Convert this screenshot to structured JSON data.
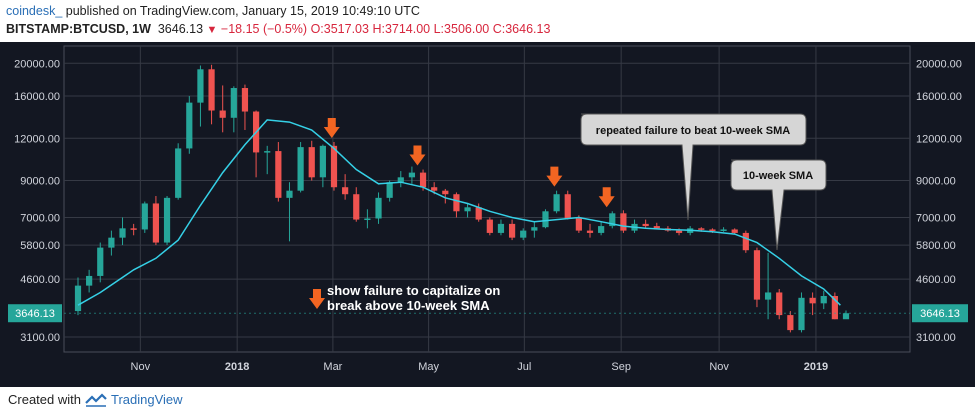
{
  "header": {
    "user": "coindesk_",
    "published": "published on TradingView.com, January 15, 2019 10:49:10 UTC",
    "symbol": "BITSTAMP:BTCUSD, 1W",
    "last": "3646.13",
    "change": "−18.15 (−0.5%)",
    "o_label": "O:",
    "o_value": "3517.03",
    "h_label": "H:",
    "h_value": "3714.00",
    "l_label": "L:",
    "l_value": "3506.00",
    "c_label": "C:",
    "c_value": "3646.13"
  },
  "footer": {
    "created_with": "Created with",
    "brand": "TradingView"
  },
  "colors": {
    "up": "#26a69a",
    "down": "#ef5350",
    "sma": "#35d0e6",
    "bg": "#131722",
    "grid": "#363a45",
    "arrow": "#f26522",
    "text": "#d1d4dc"
  },
  "chart_data": {
    "type": "candlestick",
    "yscale": "log",
    "ylim": [
      2800,
      22500
    ],
    "yticks": [
      20000,
      16000,
      12000,
      9000,
      7000,
      5800,
      4600,
      3100
    ],
    "ytick_labels": [
      "20000.00",
      "16000.00",
      "12000.00",
      "9000.00",
      "7000.00",
      "5800.00",
      "4600.00",
      "3100.00"
    ],
    "xticks": [
      "Nov",
      "2018",
      "Mar",
      "May",
      "Jul",
      "Sep",
      "Nov",
      "2019"
    ],
    "xtick_week": [
      5.6,
      14.3,
      22.9,
      31.5,
      40.1,
      48.8,
      57.6,
      66.3
    ],
    "last_price_label": "3646.13",
    "candles": [
      {
        "o": 3700,
        "h": 4650,
        "l": 3600,
        "c": 4400
      },
      {
        "o": 4400,
        "h": 4900,
        "l": 4200,
        "c": 4700
      },
      {
        "o": 4700,
        "h": 5900,
        "l": 4500,
        "c": 5700
      },
      {
        "o": 5700,
        "h": 6400,
        "l": 5400,
        "c": 6100
      },
      {
        "o": 6100,
        "h": 7000,
        "l": 5800,
        "c": 6500
      },
      {
        "o": 6500,
        "h": 6700,
        "l": 6200,
        "c": 6450
      },
      {
        "o": 6450,
        "h": 7800,
        "l": 6300,
        "c": 7700
      },
      {
        "o": 7700,
        "h": 8100,
        "l": 5800,
        "c": 5900
      },
      {
        "o": 5900,
        "h": 8100,
        "l": 5800,
        "c": 8000
      },
      {
        "o": 8000,
        "h": 11600,
        "l": 7900,
        "c": 11200
      },
      {
        "o": 11200,
        "h": 16000,
        "l": 10800,
        "c": 15300
      },
      {
        "o": 15300,
        "h": 19700,
        "l": 13000,
        "c": 19200
      },
      {
        "o": 19200,
        "h": 19800,
        "l": 13200,
        "c": 14500
      },
      {
        "o": 14500,
        "h": 17200,
        "l": 12500,
        "c": 13800
      },
      {
        "o": 13800,
        "h": 17100,
        "l": 12500,
        "c": 16900
      },
      {
        "o": 16900,
        "h": 17300,
        "l": 12700,
        "c": 14400
      },
      {
        "o": 14400,
        "h": 14500,
        "l": 9200,
        "c": 10900
      },
      {
        "o": 10900,
        "h": 11400,
        "l": 9400,
        "c": 11000
      },
      {
        "o": 11000,
        "h": 11700,
        "l": 7800,
        "c": 8000
      },
      {
        "o": 8000,
        "h": 8900,
        "l": 5950,
        "c": 8400
      },
      {
        "o": 8400,
        "h": 11700,
        "l": 8300,
        "c": 11300
      },
      {
        "o": 11300,
        "h": 11800,
        "l": 9000,
        "c": 9200
      },
      {
        "o": 9200,
        "h": 11500,
        "l": 8600,
        "c": 11400
      },
      {
        "o": 11400,
        "h": 11700,
        "l": 8400,
        "c": 8600
      },
      {
        "o": 8600,
        "h": 9400,
        "l": 7900,
        "c": 8200
      },
      {
        "o": 8200,
        "h": 8600,
        "l": 6800,
        "c": 6900
      },
      {
        "o": 6900,
        "h": 7400,
        "l": 6500,
        "c": 6950
      },
      {
        "o": 6950,
        "h": 8300,
        "l": 6700,
        "c": 8000
      },
      {
        "o": 8000,
        "h": 9000,
        "l": 7800,
        "c": 8900
      },
      {
        "o": 8900,
        "h": 9600,
        "l": 8600,
        "c": 9200
      },
      {
        "o": 9200,
        "h": 9900,
        "l": 8800,
        "c": 9500
      },
      {
        "o": 9500,
        "h": 9700,
        "l": 8400,
        "c": 8600
      },
      {
        "o": 8600,
        "h": 8900,
        "l": 8200,
        "c": 8400
      },
      {
        "o": 8400,
        "h": 8500,
        "l": 7700,
        "c": 8200
      },
      {
        "o": 8200,
        "h": 8300,
        "l": 7000,
        "c": 7300
      },
      {
        "o": 7300,
        "h": 7700,
        "l": 7000,
        "c": 7500
      },
      {
        "o": 7500,
        "h": 7700,
        "l": 6800,
        "c": 6900
      },
      {
        "o": 6900,
        "h": 7000,
        "l": 6200,
        "c": 6300
      },
      {
        "o": 6300,
        "h": 6900,
        "l": 6200,
        "c": 6700
      },
      {
        "o": 6700,
        "h": 6900,
        "l": 6000,
        "c": 6100
      },
      {
        "o": 6100,
        "h": 6500,
        "l": 6000,
        "c": 6400
      },
      {
        "o": 6400,
        "h": 6800,
        "l": 6100,
        "c": 6550
      },
      {
        "o": 6550,
        "h": 7400,
        "l": 6500,
        "c": 7300
      },
      {
        "o": 7300,
        "h": 8400,
        "l": 7200,
        "c": 8200
      },
      {
        "o": 8200,
        "h": 8400,
        "l": 6900,
        "c": 6950
      },
      {
        "o": 6950,
        "h": 7100,
        "l": 6300,
        "c": 6400
      },
      {
        "o": 6400,
        "h": 6700,
        "l": 6100,
        "c": 6300
      },
      {
        "o": 6300,
        "h": 6800,
        "l": 6200,
        "c": 6600
      },
      {
        "o": 6600,
        "h": 7300,
        "l": 6500,
        "c": 7200
      },
      {
        "o": 7200,
        "h": 7350,
        "l": 6300,
        "c": 6400
      },
      {
        "o": 6400,
        "h": 6900,
        "l": 6300,
        "c": 6700
      },
      {
        "o": 6700,
        "h": 6900,
        "l": 6500,
        "c": 6600
      },
      {
        "o": 6600,
        "h": 6750,
        "l": 6450,
        "c": 6500
      },
      {
        "o": 6500,
        "h": 6600,
        "l": 6350,
        "c": 6400
      },
      {
        "o": 6400,
        "h": 6500,
        "l": 6200,
        "c": 6300
      },
      {
        "o": 6300,
        "h": 6600,
        "l": 6200,
        "c": 6500
      },
      {
        "o": 6500,
        "h": 6550,
        "l": 6350,
        "c": 6450
      },
      {
        "o": 6450,
        "h": 6500,
        "l": 6300,
        "c": 6400
      },
      {
        "o": 6400,
        "h": 6550,
        "l": 6350,
        "c": 6450
      },
      {
        "o": 6450,
        "h": 6500,
        "l": 6250,
        "c": 6300
      },
      {
        "o": 6300,
        "h": 6400,
        "l": 5500,
        "c": 5600
      },
      {
        "o": 5600,
        "h": 5700,
        "l": 3800,
        "c": 4000
      },
      {
        "o": 4000,
        "h": 5500,
        "l": 3500,
        "c": 4200
      },
      {
        "o": 4200,
        "h": 4300,
        "l": 3500,
        "c": 3600
      },
      {
        "o": 3600,
        "h": 3700,
        "l": 3200,
        "c": 3250
      },
      {
        "o": 3250,
        "h": 4200,
        "l": 3200,
        "c": 4050
      },
      {
        "o": 4050,
        "h": 4200,
        "l": 3600,
        "c": 3900
      },
      {
        "o": 3900,
        "h": 4250,
        "l": 3750,
        "c": 4100
      },
      {
        "o": 4100,
        "h": 4200,
        "l": 3500,
        "c": 3500
      },
      {
        "o": 3500,
        "h": 3714,
        "l": 3506,
        "c": 3646
      }
    ],
    "sma": [
      {
        "w": 0,
        "v": 3850
      },
      {
        "w": 2,
        "v": 4200
      },
      {
        "w": 5,
        "v": 4900
      },
      {
        "w": 7,
        "v": 5300
      },
      {
        "w": 9,
        "v": 6000
      },
      {
        "w": 11,
        "v": 7600
      },
      {
        "w": 13,
        "v": 9500
      },
      {
        "w": 15,
        "v": 11500
      },
      {
        "w": 17,
        "v": 13600
      },
      {
        "w": 19,
        "v": 13400
      },
      {
        "w": 21,
        "v": 12700
      },
      {
        "w": 23,
        "v": 11200
      },
      {
        "w": 25,
        "v": 9700
      },
      {
        "w": 27,
        "v": 8800
      },
      {
        "w": 29,
        "v": 8900
      },
      {
        "w": 31,
        "v": 8600
      },
      {
        "w": 33,
        "v": 8000
      },
      {
        "w": 35,
        "v": 7700
      },
      {
        "w": 37,
        "v": 7300
      },
      {
        "w": 39,
        "v": 7000
      },
      {
        "w": 41,
        "v": 6800
      },
      {
        "w": 43,
        "v": 6900
      },
      {
        "w": 45,
        "v": 7000
      },
      {
        "w": 47,
        "v": 6800
      },
      {
        "w": 49,
        "v": 6600
      },
      {
        "w": 51,
        "v": 6500
      },
      {
        "w": 53,
        "v": 6450
      },
      {
        "w": 55,
        "v": 6420
      },
      {
        "w": 57,
        "v": 6350
      },
      {
        "w": 59,
        "v": 6250
      },
      {
        "w": 61,
        "v": 5900
      },
      {
        "w": 63,
        "v": 5300
      },
      {
        "w": 65,
        "v": 4700
      },
      {
        "w": 67,
        "v": 4300
      },
      {
        "w": 68.5,
        "v": 3850
      }
    ],
    "arrows_week": [
      22.8,
      30.5,
      42.8,
      47.5
    ],
    "annotations": {
      "callout1": "repeated failure to beat 10-week SMA",
      "callout2": "10-week SMA",
      "note_line1": "show failure to capitalize on",
      "note_line2": "break above 10-week SMA"
    }
  }
}
